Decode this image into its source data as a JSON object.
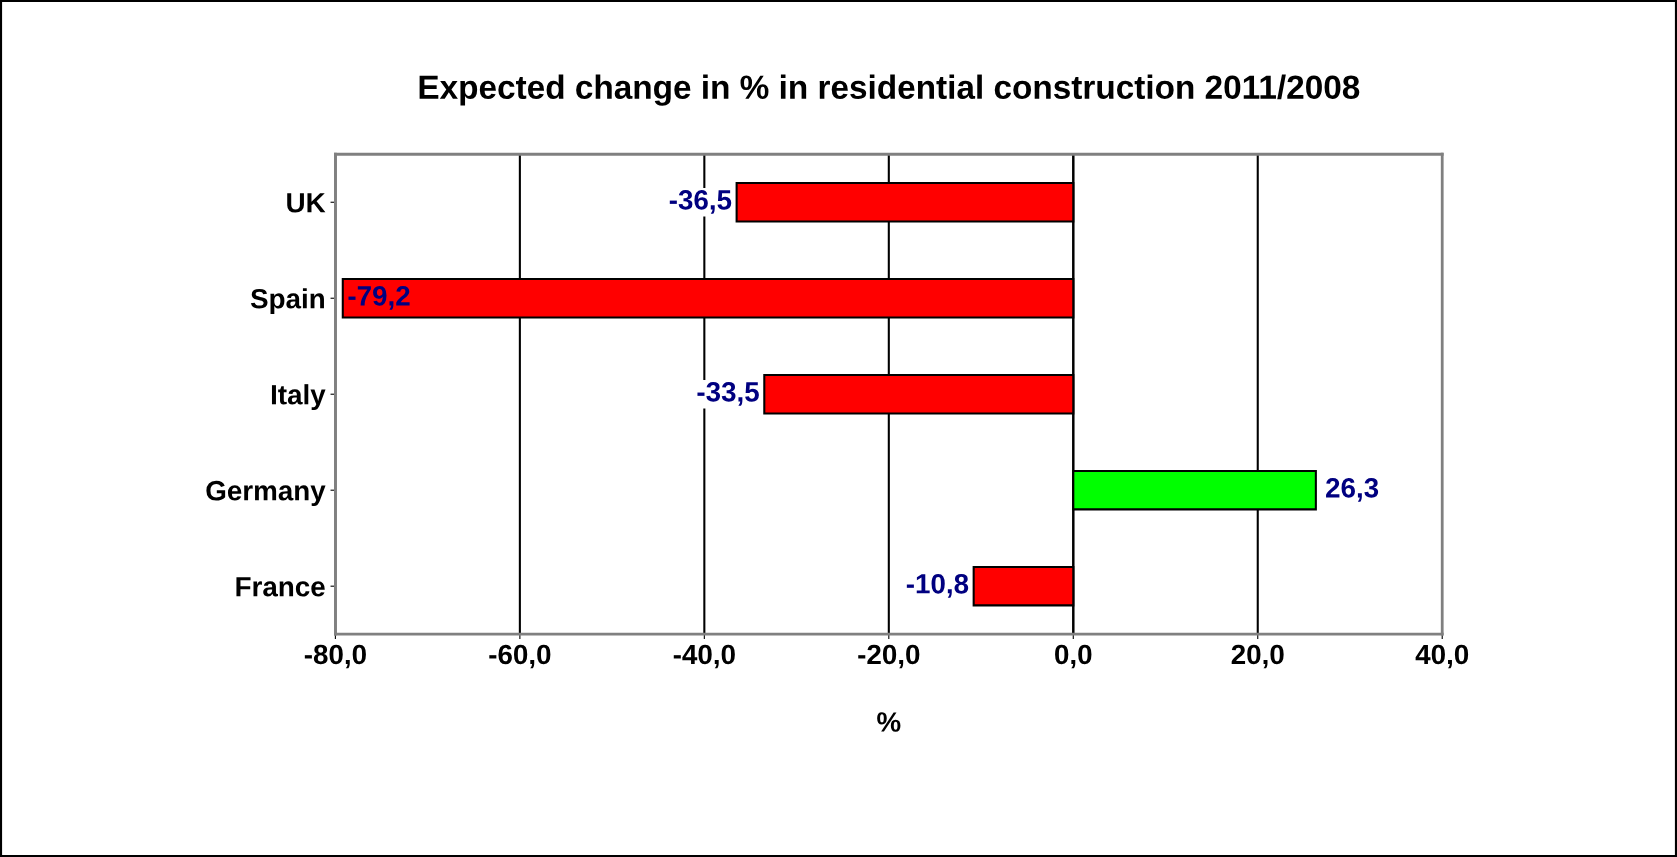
{
  "chart_data": {
    "type": "bar",
    "orientation": "horizontal",
    "title": "Expected change in % in residential construction 2011/2008",
    "xlabel": "%",
    "categories": [
      "UK",
      "Spain",
      "Italy",
      "Germany",
      "France"
    ],
    "values": [
      -36.5,
      -79.2,
      -33.5,
      26.3,
      -10.8
    ],
    "colors": [
      "#ff0000",
      "#ff0000",
      "#ff0000",
      "#00ff00",
      "#ff0000"
    ],
    "value_labels": [
      "-36,5",
      "-79,2",
      "-33,5",
      "26,3",
      "-10,8"
    ],
    "xlim": [
      -80,
      40
    ],
    "xticks": [
      {
        "value": -80,
        "label": "-80,0"
      },
      {
        "value": -60,
        "label": "-60,0"
      },
      {
        "value": -40,
        "label": "-40,0"
      },
      {
        "value": -20,
        "label": "-20,0"
      },
      {
        "value": 0,
        "label": "0,0"
      },
      {
        "value": 20,
        "label": "20,0"
      },
      {
        "value": 40,
        "label": "40,0"
      }
    ],
    "grid": "x"
  }
}
